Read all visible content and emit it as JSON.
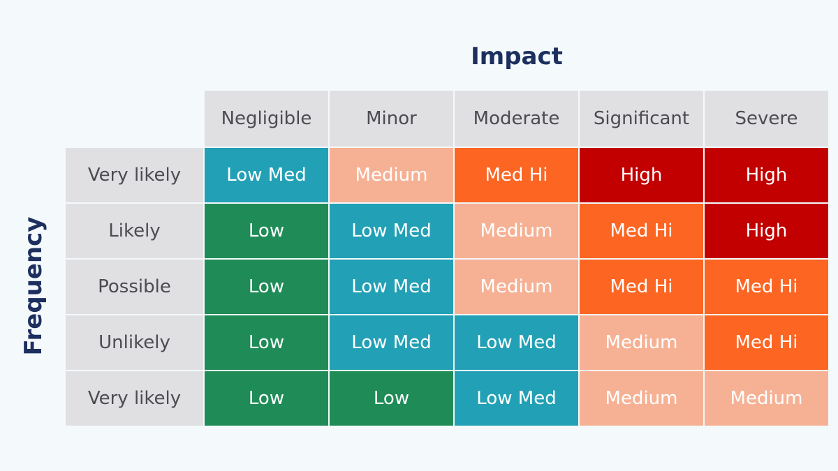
{
  "matrix": {
    "x_axis_title": "Impact",
    "y_axis_title": "Frequency",
    "columns": [
      "Negligible",
      "Minor",
      "Moderate",
      "Significant",
      "Severe"
    ],
    "rows": [
      {
        "label": "Very likely",
        "cells": [
          "Low Med",
          "Medium",
          "Med Hi",
          "High",
          "High"
        ]
      },
      {
        "label": "Likely",
        "cells": [
          "Low",
          "Low Med",
          "Medium",
          "Med Hi",
          "High"
        ]
      },
      {
        "label": "Possible",
        "cells": [
          "Low",
          "Low Med",
          "Medium",
          "Med Hi",
          "Med Hi"
        ]
      },
      {
        "label": "Unlikely",
        "cells": [
          "Low",
          "Low Med",
          "Low Med",
          "Medium",
          "Med Hi"
        ]
      },
      {
        "label": "Very likely",
        "cells": [
          "Low",
          "Low",
          "Low Med",
          "Medium",
          "Medium"
        ]
      }
    ],
    "level_colors": {
      "Low": "#1f8c57",
      "Low Med": "#22a0b5",
      "Medium": "#f6b194",
      "Med Hi": "#fd6522",
      "High": "#c20000"
    }
  }
}
